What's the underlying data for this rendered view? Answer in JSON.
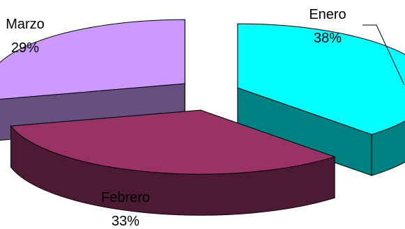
{
  "chart_data": {
    "type": "pie",
    "style": "3d-exploded",
    "title": "",
    "categories": [
      "Enero",
      "Febrero",
      "Marzo"
    ],
    "values": [
      38,
      33,
      29
    ],
    "percent_labels": [
      "38%",
      "33%",
      "29%"
    ],
    "colors": {
      "Enero": {
        "top": "#00ffff",
        "side": "#008080"
      },
      "Febrero": {
        "top": "#993366",
        "side": "#4d1a33"
      },
      "Marzo": {
        "top": "#cc99ff",
        "side": "#665080"
      }
    }
  }
}
